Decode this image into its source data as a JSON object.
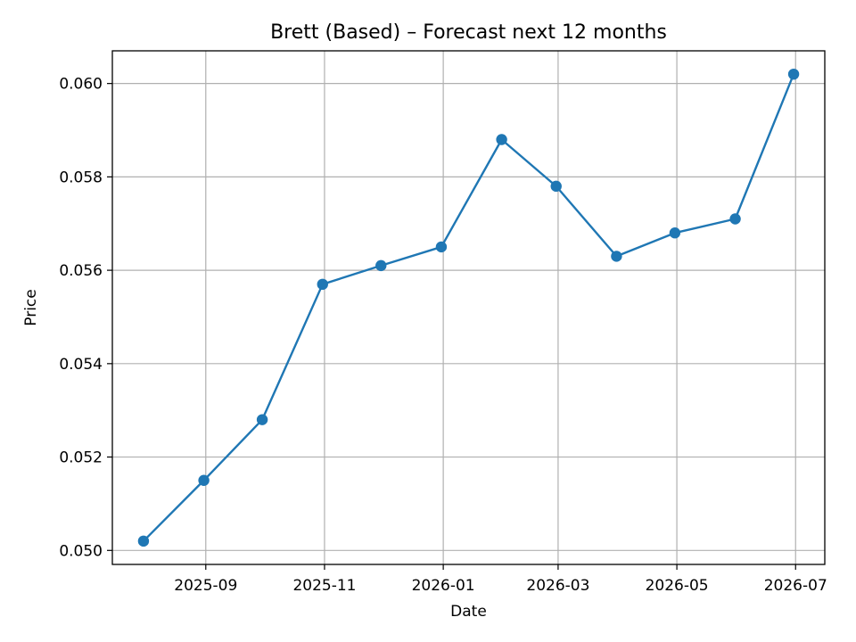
{
  "chart_data": {
    "type": "line",
    "title": "Brett (Based) – Forecast next 12 months",
    "xlabel": "Date",
    "ylabel": "Price",
    "x": [
      "2025-07-31",
      "2025-08-31",
      "2025-09-30",
      "2025-10-31",
      "2025-11-30",
      "2025-12-31",
      "2026-01-31",
      "2026-02-28",
      "2026-03-31",
      "2026-04-30",
      "2026-05-31",
      "2026-06-30"
    ],
    "series": [
      {
        "values": [
          0.0502,
          0.0515,
          0.0528,
          0.0557,
          0.0561,
          0.0565,
          0.0588,
          0.0578,
          0.0563,
          0.0568,
          0.0571,
          0.0602
        ]
      }
    ],
    "xlim": [
      "2025-07-15",
      "2026-07-16"
    ],
    "ylim": [
      0.0497,
      0.0607
    ],
    "xticks": [
      {
        "date": "2025-09-01",
        "label": "2025-09"
      },
      {
        "date": "2025-11-01",
        "label": "2025-11"
      },
      {
        "date": "2026-01-01",
        "label": "2026-01"
      },
      {
        "date": "2026-03-01",
        "label": "2026-03"
      },
      {
        "date": "2026-05-01",
        "label": "2026-05"
      },
      {
        "date": "2026-07-01",
        "label": "2026-07"
      }
    ],
    "yticks": [
      {
        "value": 0.05,
        "label": "0.050"
      },
      {
        "value": 0.052,
        "label": "0.052"
      },
      {
        "value": 0.054,
        "label": "0.054"
      },
      {
        "value": 0.056,
        "label": "0.056"
      },
      {
        "value": 0.058,
        "label": "0.058"
      },
      {
        "value": 0.06,
        "label": "0.060"
      }
    ],
    "grid": true,
    "colors": {
      "line": "#1f77b4",
      "marker": "#1f77b4"
    }
  }
}
